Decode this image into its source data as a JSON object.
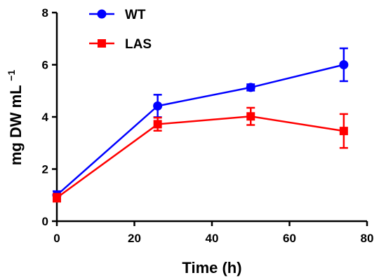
{
  "chart_data": {
    "type": "line",
    "xlabel": "Time (h)",
    "ylabel": "mg DW mL",
    "ylabel_sup": "−1",
    "xlim": [
      0,
      80
    ],
    "ylim": [
      0,
      8
    ],
    "xticks": [
      0,
      20,
      40,
      60,
      80
    ],
    "yticks": [
      0,
      2,
      4,
      6,
      8
    ],
    "grid": false,
    "legend": "top-left",
    "series": [
      {
        "name": "WT",
        "color": "#0000ff",
        "marker": "circle",
        "x": [
          0,
          26,
          50,
          74
        ],
        "y": [
          1.0,
          4.42,
          5.13,
          6.0
        ],
        "err": [
          0.15,
          0.43,
          0.12,
          0.63
        ]
      },
      {
        "name": "LAS",
        "color": "#ff0000",
        "marker": "square",
        "x": [
          0,
          26,
          50,
          74
        ],
        "y": [
          0.9,
          3.72,
          4.02,
          3.46
        ],
        "err": [
          0.15,
          0.25,
          0.33,
          0.65
        ]
      }
    ]
  }
}
